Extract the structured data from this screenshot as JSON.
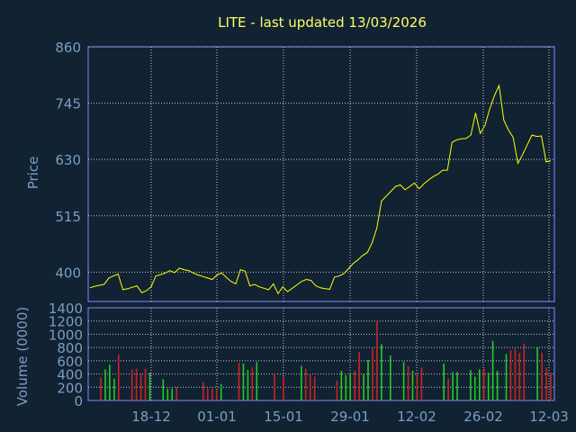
{
  "chart_data": [
    {
      "type": "line",
      "title": "LITE - last updated 13/03/2026",
      "ylabel": "Price",
      "ylim": [
        340,
        860
      ],
      "y_ticks": [
        400,
        515,
        630,
        745,
        860
      ],
      "x_tick_labels": [
        "18-12",
        "01-01",
        "15-01",
        "29-01",
        "12-02",
        "26-02",
        "12-03"
      ],
      "grid": true,
      "colors": {
        "line": "#ffff00",
        "background": "#112233",
        "axis": "#8888ff",
        "grid": "#ccccdd",
        "text": "#ffff66",
        "labels": "#7a9ec2"
      },
      "series": [
        {
          "values": [
            368,
            371,
            373,
            375,
            388,
            392,
            396,
            364,
            366,
            369,
            372,
            358,
            362,
            370,
            392,
            395,
            398,
            403,
            399,
            408,
            405,
            403,
            398,
            394,
            391,
            388,
            385,
            394,
            398,
            389,
            381,
            376,
            405,
            402,
            372,
            375,
            370,
            367,
            364,
            376,
            356,
            370,
            360,
            367,
            374,
            381,
            385,
            383,
            372,
            368,
            366,
            365,
            390,
            392,
            397,
            407,
            418,
            425,
            434,
            440,
            460,
            490,
            545,
            555,
            565,
            575,
            578,
            568,
            575,
            582,
            570,
            580,
            588,
            595,
            600,
            608,
            608,
            665,
            670,
            672,
            673,
            680,
            725,
            683,
            700,
            733,
            760,
            781,
            710,
            690,
            675,
            622,
            640,
            660,
            680,
            677,
            678,
            625,
            627
          ]
        }
      ]
    },
    {
      "type": "bar",
      "ylabel": "Volume (0000)",
      "ylim": [
        0,
        1400
      ],
      "y_ticks": [
        0,
        200,
        400,
        600,
        800,
        1000,
        1200,
        1400
      ],
      "grid": true,
      "colors": {
        "up": "#22cc22",
        "down": "#cc2222"
      },
      "values": [
        350,
        470,
        540,
        330,
        690,
        0,
        0,
        470,
        480,
        400,
        480,
        420,
        0,
        0,
        320,
        180,
        180,
        200,
        0,
        0,
        0,
        0,
        0,
        280,
        180,
        180,
        160,
        250,
        0,
        0,
        0,
        570,
        560,
        460,
        500,
        580,
        0,
        0,
        0,
        400,
        0,
        360,
        0,
        0,
        0,
        520,
        480,
        400,
        360,
        0,
        0,
        0,
        0,
        300,
        450,
        380,
        400,
        450,
        730,
        400,
        610,
        800,
        1200,
        850,
        0,
        680,
        0,
        0,
        580,
        520,
        450,
        400,
        500,
        0,
        0,
        0,
        0,
        560,
        330,
        430,
        430,
        0,
        0,
        460,
        360,
        470,
        480,
        420,
        900,
        450,
        0,
        700,
        760,
        780,
        720,
        860,
        0,
        0,
        800,
        720,
        500,
        420
      ],
      "up": [
        false,
        true,
        true,
        true,
        false,
        false,
        false,
        false,
        false,
        false,
        false,
        true,
        false,
        false,
        true,
        true,
        true,
        false,
        false,
        false,
        false,
        false,
        false,
        false,
        false,
        false,
        false,
        true,
        false,
        false,
        false,
        false,
        true,
        true,
        false,
        true,
        false,
        false,
        false,
        false,
        false,
        false,
        false,
        false,
        false,
        true,
        false,
        false,
        false,
        false,
        false,
        false,
        false,
        false,
        true,
        true,
        true,
        false,
        false,
        true,
        true,
        false,
        false,
        true,
        false,
        true,
        false,
        false,
        true,
        false,
        true,
        false,
        false,
        false,
        false,
        false,
        false,
        true,
        false,
        true,
        true,
        false,
        false,
        true,
        true,
        true,
        false,
        true,
        true,
        true,
        false,
        true,
        false,
        false,
        false,
        false,
        false,
        false,
        true,
        false,
        false,
        false
      ]
    }
  ]
}
